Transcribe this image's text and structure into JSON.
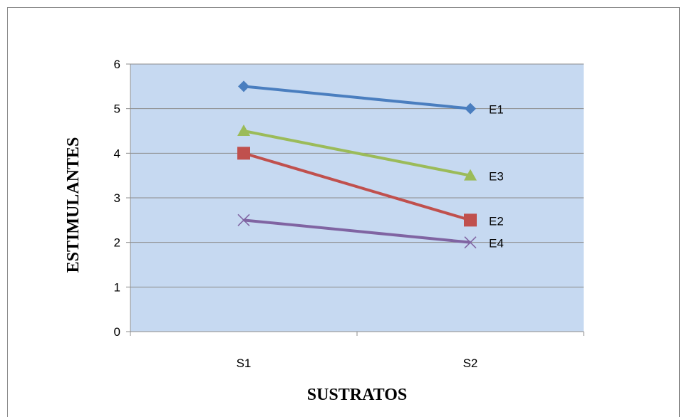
{
  "chart_data": {
    "type": "line",
    "categories": [
      "S1",
      "S2"
    ],
    "series": [
      {
        "name": "E1",
        "values": [
          5.5,
          5.0
        ],
        "color": "#4a7ebf",
        "marker": "diamond"
      },
      {
        "name": "E2",
        "values": [
          4.0,
          2.5
        ],
        "color": "#c0504d",
        "marker": "square"
      },
      {
        "name": "E3",
        "values": [
          4.5,
          3.5
        ],
        "color": "#9bbb59",
        "marker": "triangle"
      },
      {
        "name": "E4",
        "values": [
          2.5,
          2.0
        ],
        "color": "#8064a2",
        "marker": "x"
      }
    ],
    "xlabel": "SUSTRATOS",
    "ylabel": "ESTIMULANTES",
    "ylim": [
      0,
      6
    ],
    "yticks": [
      "0",
      "1",
      "2",
      "3",
      "4",
      "5",
      "6"
    ],
    "grid": true,
    "plot_background": "#c6d9f1",
    "labels_at_line_end": true
  }
}
